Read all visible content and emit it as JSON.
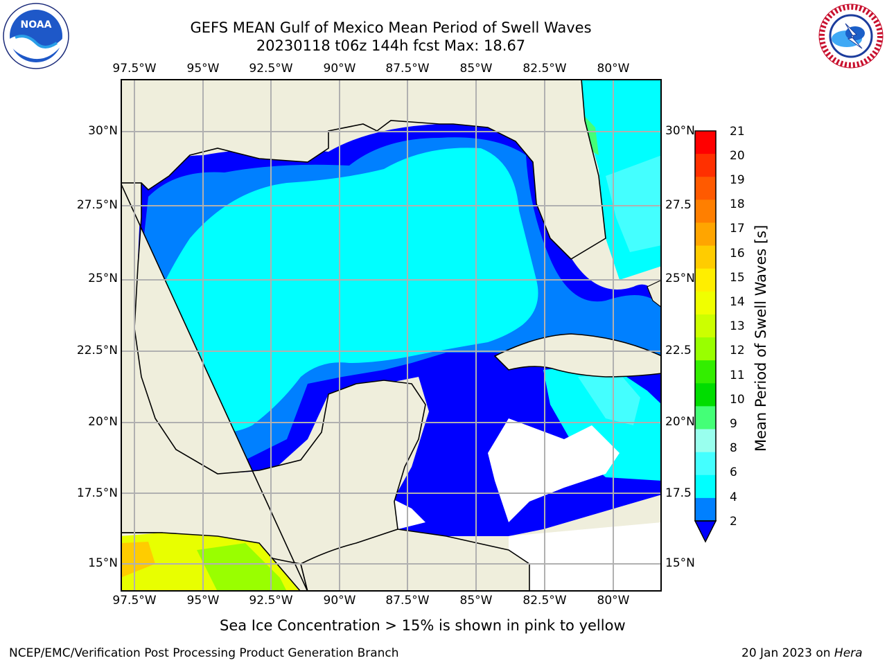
{
  "header": {
    "title_line1": "GEFS MEAN Gulf of Mexico Mean Period of Swell Waves",
    "title_line2": "20230118 t06z 144h fcst   Max: 18.67"
  },
  "logos": {
    "left": {
      "icon": "noaa-logo",
      "text": "NOAA"
    },
    "right": {
      "icon": "nws-logo",
      "text": "NATIONAL WEATHER SERVICE"
    }
  },
  "map": {
    "lon_labels": [
      "97.5°W",
      "95°W",
      "92.5°W",
      "90°W",
      "87.5°W",
      "85°W",
      "82.5°W",
      "80°W"
    ],
    "lat_labels_left": [
      "30°N",
      "27.5°N",
      "25°N",
      "22.5°N",
      "20°N",
      "17.5°N",
      "15°N"
    ],
    "lat_labels_right": [
      "30°N",
      "27.5",
      "25°N",
      "22.5",
      "20°N",
      "17.5",
      "15°N"
    ],
    "land_color": "#efeedc",
    "grid_color": "#b0b0b0"
  },
  "colorbar": {
    "label": "Mean Period of Swell Waves [s]",
    "ticks": [
      "21",
      "20",
      "19",
      "18",
      "17",
      "16",
      "15",
      "14",
      "13",
      "12",
      "11",
      "10",
      "9",
      "8",
      "6",
      "4",
      "2"
    ],
    "colors": [
      "#ff0000",
      "#ff3000",
      "#ff5a00",
      "#ff7f00",
      "#ffa500",
      "#ffcc00",
      "#ffee00",
      "#f0ff00",
      "#ccff00",
      "#99ff00",
      "#33ee00",
      "#00dd00",
      "#44ff77",
      "#99ffee",
      "#44ffff",
      "#00ffff",
      "#0080ff",
      "#0000ff"
    ]
  },
  "note": "Sea Ice Concentration > 15% is shown in pink to yellow",
  "footer": {
    "left": "NCEP/EMC/Verification Post Processing Product Generation Branch",
    "right_date": "20 Jan 2023 on ",
    "right_host": "Hera"
  }
}
